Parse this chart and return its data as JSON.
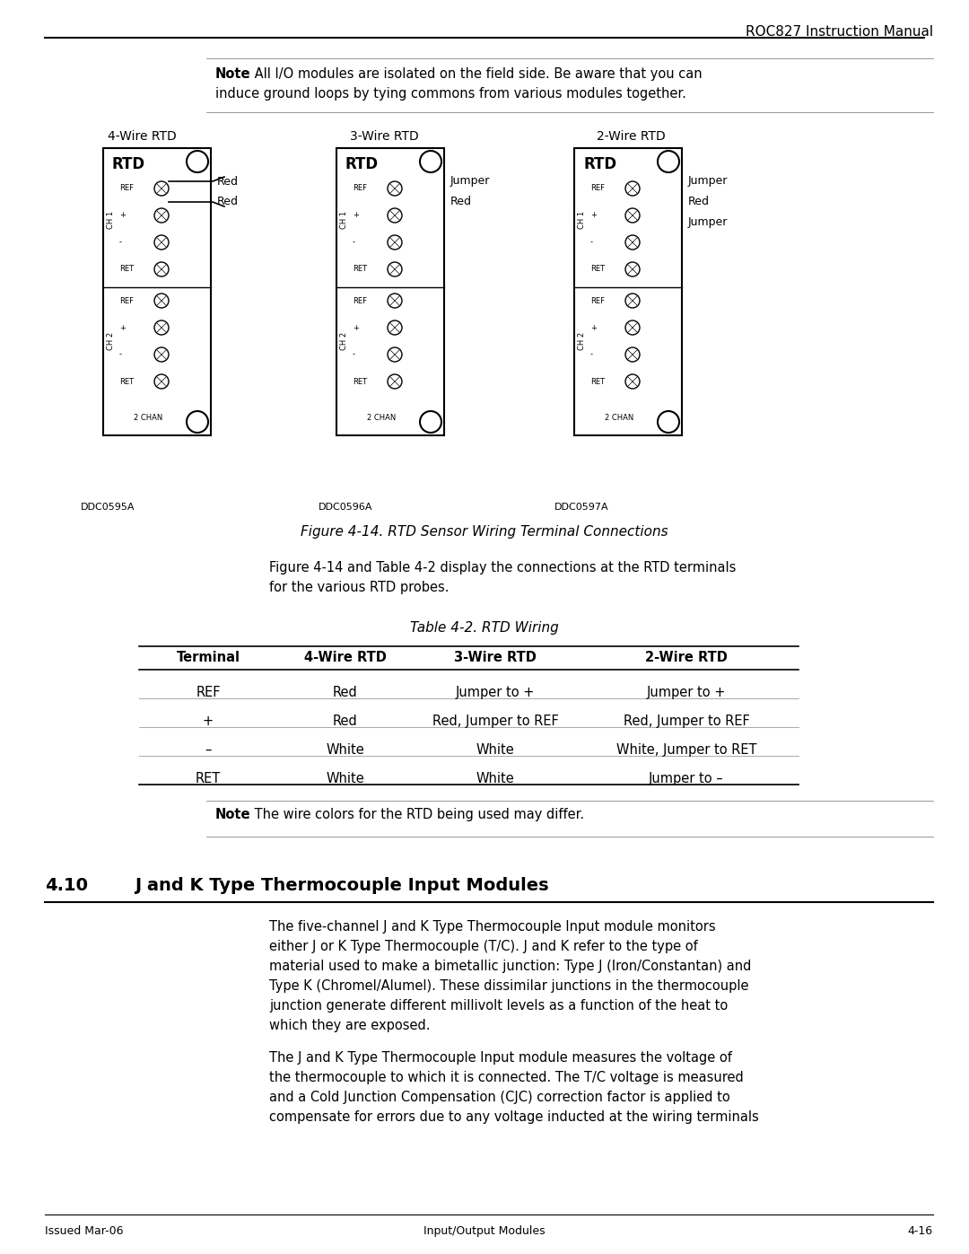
{
  "header_right": "ROC827 Instruction Manual",
  "note_box_text": "Note: All I/O modules are isolated on the field side. Be aware that you can\ninduce ground loops by tying commons from various modules together.",
  "wire_labels": [
    "4-Wire RTD",
    "3-Wire RTD",
    "2-Wire RTD"
  ],
  "figure_caption": "Figure 4-14. RTD Sensor Wiring Terminal Connections",
  "figure_text": "Figure 4-14 and Table 4-2 display the connections at the RTD terminals\nfor the various RTD probes.",
  "table_caption": "Table 4-2. RTD Wiring",
  "table_headers": [
    "Terminal",
    "4-Wire RTD",
    "3-Wire RTD",
    "2-Wire RTD"
  ],
  "table_rows": [
    [
      "REF",
      "Red",
      "Jumper to +",
      "Jumper to +"
    ],
    [
      "+",
      "Red",
      "Red, Jumper to REF",
      "Red, Jumper to REF"
    ],
    [
      "–",
      "White",
      "White",
      "White, Jumper to RET"
    ],
    [
      "RET",
      "White",
      "White",
      "Jumper to –"
    ]
  ],
  "note2_text": "Note: The wire colors for the RTD being used may differ.",
  "section_num": "4.10",
  "section_title": "J and K Type Thermocouple Input Modules",
  "para1": "The five-channel J and K Type Thermocouple Input module monitors\neither J or K Type Thermocouple (T/C). J and K refer to the type of\nmaterial used to make a bimetallic junction: Type J (Iron/Constantan) and\nType K (Chromel/Alumel). These dissimilar junctions in the thermocouple\njunction generate different millivolt levels as a function of the heat to\nwhich they are exposed.",
  "para2": "The J and K Type Thermocouple Input module measures the voltage of\nthe thermocouple to which it is connected. The T/C voltage is measured\nand a Cold Junction Compensation (CJC) correction factor is applied to\ncompensate for errors due to any voltage inducted at the wiring terminals",
  "footer_left": "Issued Mar-06",
  "footer_center": "Input/Output Modules",
  "footer_right": "4-16",
  "bg_color": "#ffffff",
  "text_color": "#000000",
  "diagram_codes": [
    "DDC0595A",
    "DDC0596A",
    "DDC0597A"
  ],
  "wire4_annotations": [
    "Red",
    "Red"
  ],
  "wire3_annotations": [
    "Jumper",
    "Red"
  ],
  "wire2_annotations": [
    "Jumper",
    "Red",
    "Jumper"
  ]
}
